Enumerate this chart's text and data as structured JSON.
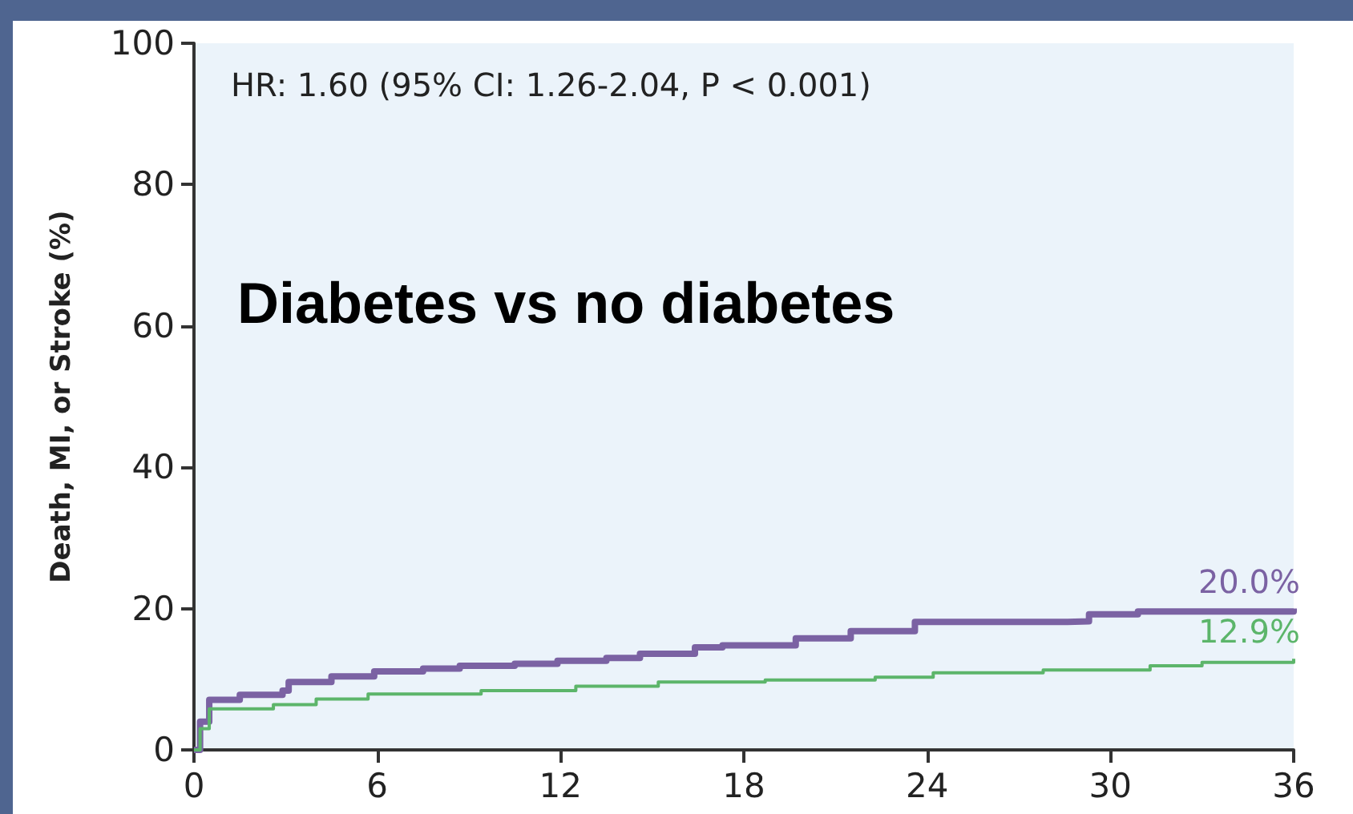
{
  "chart_data": {
    "type": "step",
    "title": "Diabetes vs no diabetes",
    "ylabel": "Death, MI, or Stroke (%)",
    "annotations": [
      "HR: 1.60 (95% CI: 1.26-2.04, P < 0.001)"
    ],
    "xlim": [
      0,
      36
    ],
    "xticks": [
      0,
      6,
      12,
      18,
      24,
      30,
      36
    ],
    "ylim": [
      0,
      100
    ],
    "yticks": [
      0,
      20,
      40,
      60,
      80,
      100
    ],
    "marker": "none",
    "line_style": "solid",
    "series": [
      {
        "color": "#7b62a3",
        "x": [
          0,
          0.2,
          0.5,
          1.5,
          2.9,
          3.1,
          4.5,
          5.9,
          7.5,
          8.7,
          10.5,
          11.9,
          13.5,
          14.6,
          16.4,
          17.3,
          19.7,
          21.5,
          23.6,
          28.6,
          29.3,
          30.9,
          36
        ],
        "values": [
          0,
          4.0,
          7.1,
          7.8,
          8.4,
          9.6,
          10.4,
          11.1,
          11.5,
          11.9,
          12.2,
          12.6,
          13.0,
          13.6,
          14.5,
          14.8,
          15.8,
          16.8,
          18.1,
          18.2,
          19.2,
          19.6,
          20.0
        ],
        "value_labels": [
          null,
          null,
          null,
          null,
          null,
          null,
          null,
          null,
          null,
          null,
          null,
          null,
          null,
          null,
          null,
          null,
          null,
          null,
          null,
          null,
          null,
          null,
          "20.0%"
        ]
      },
      {
        "color": "#5cb56a",
        "x": [
          0,
          0.2,
          0.5,
          2.6,
          4.0,
          5.7,
          9.4,
          12.5,
          15.2,
          18.7,
          22.3,
          24.2,
          27.8,
          31.3,
          33,
          36
        ],
        "values": [
          0,
          3.0,
          5.8,
          6.4,
          7.2,
          7.9,
          8.4,
          9.0,
          9.6,
          9.9,
          10.3,
          10.9,
          11.3,
          11.9,
          12.4,
          12.9
        ],
        "value_labels": [
          null,
          null,
          null,
          null,
          null,
          null,
          null,
          null,
          null,
          null,
          null,
          null,
          null,
          null,
          null,
          "12.9%"
        ]
      }
    ]
  }
}
